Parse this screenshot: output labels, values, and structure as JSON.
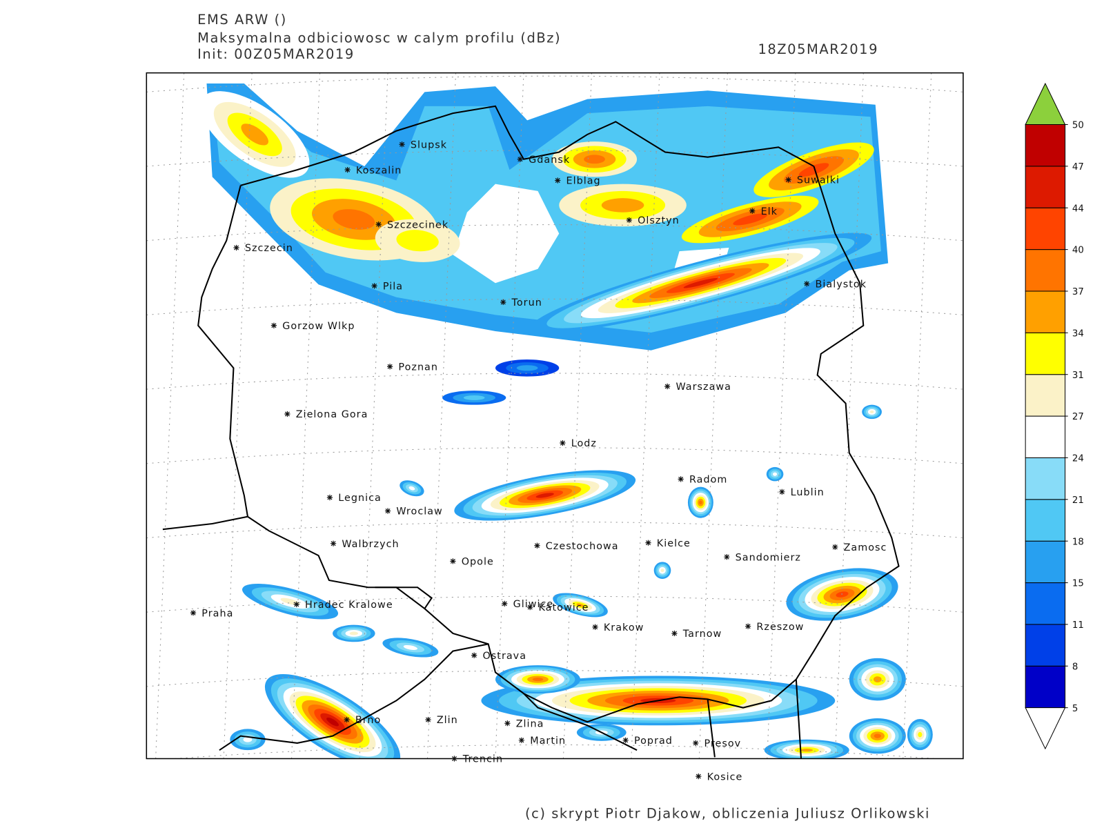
{
  "header": {
    "model": "EMS ARW ()",
    "title": "Maksymalna odbiciowosc w calym profilu (dBz)",
    "init": "Init: 00Z05MAR2019",
    "valid": "18Z05MAR2019"
  },
  "cities": [
    "Slupsk",
    "Gdansk",
    "Koszalin",
    "Elblag",
    "Suwalki",
    "Elk",
    "Szczecinek",
    "Olsztyn",
    "Szczecin",
    "Bialystok",
    "Pila",
    "Torun",
    "Gorzow Wlkp",
    "Poznan",
    "Warszawa",
    "Zielona Gora",
    "Lodz",
    "Radom",
    "Lublin",
    "Legnica",
    "Wroclaw",
    "Walbrzych",
    "Czestochowa",
    "Kielce",
    "Zamosc",
    "Sandomierz",
    "Opole",
    "Gliwice",
    "Hradec Kralowe",
    "Katowice",
    "Praha",
    "Krakow",
    "Tarnow",
    "Rzeszow",
    "Ostrava",
    "Brno",
    "Zlin",
    "Zlina",
    "Martin",
    "Poprad",
    "Presov",
    "Trencin",
    "Kosice"
  ],
  "colorbar": {
    "ticks": [
      5,
      8,
      11,
      15,
      18,
      21,
      24,
      27,
      31,
      34,
      37,
      40,
      44,
      47,
      50
    ],
    "colors": [
      "#0000c8",
      "#0040e8",
      "#0a6cf0",
      "#28a0f0",
      "#50c8f4",
      "#88dcf8",
      "#ffffff",
      "#fbf2c8",
      "#ffff00",
      "#ffa000",
      "#ff7400",
      "#ff4400",
      "#dd1a00",
      "#c00000"
    ],
    "under_color": "#ffffff",
    "over_color": "#8cd03c"
  },
  "footer": "(c) skrypt Piotr Djakow, obliczenia Juliusz Orlikowski"
}
